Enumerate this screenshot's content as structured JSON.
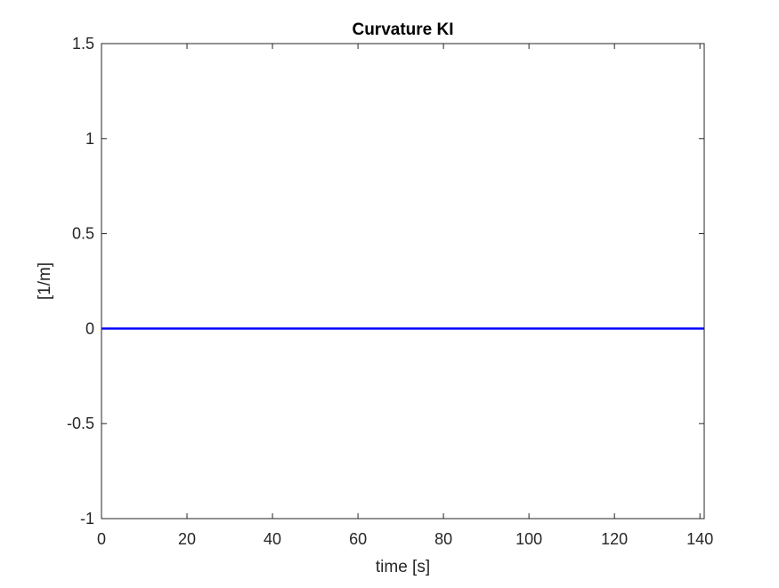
{
  "chart_data": {
    "type": "line",
    "title": "Curvature KI",
    "xlabel": "time [s]",
    "ylabel": "[1/m]",
    "xlim": [
      0,
      141
    ],
    "ylim": [
      -1,
      1.5
    ],
    "xticks": [
      0,
      20,
      40,
      60,
      80,
      100,
      120,
      140
    ],
    "yticks": [
      -1,
      -0.5,
      0,
      0.5,
      1,
      1.5
    ],
    "xtick_labels": [
      "0",
      "20",
      "40",
      "60",
      "80",
      "100",
      "120",
      "140"
    ],
    "ytick_labels": [
      "-1",
      "-0.5",
      "0",
      "0.5",
      "1",
      "1.5"
    ],
    "grid": false,
    "box": true,
    "series": [
      {
        "color": "#0000ff",
        "x": [
          0,
          141
        ],
        "y": [
          0,
          0
        ]
      }
    ]
  }
}
